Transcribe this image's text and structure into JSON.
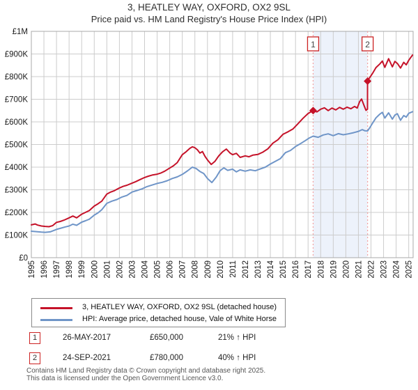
{
  "title": {
    "line1": "3, HEATLEY WAY, OXFORD, OX2 9SL",
    "line2": "Price paid vs. HM Land Registry's House Price Index (HPI)"
  },
  "chart_data": {
    "type": "line",
    "title": "3, HEATLEY WAY, OXFORD, OX2 9SL — Price paid vs. HPI",
    "values_unit": "GBP_thousands",
    "grid": true,
    "legend_position": "bottom",
    "grid_color": "#cccccc",
    "border_color": "#a8a8a8",
    "sale_line_color": "#f2a0a0",
    "band": {
      "from": 2017.4,
      "to": 2021.73,
      "color": "#edf2fb"
    },
    "x_axis": {
      "min": 1995,
      "max": 2025.35,
      "years": [
        1995,
        1996,
        1997,
        1998,
        1999,
        2000,
        2001,
        2002,
        2003,
        2004,
        2005,
        2006,
        2007,
        2008,
        2009,
        2010,
        2011,
        2012,
        2013,
        2014,
        2015,
        2016,
        2017,
        2018,
        2019,
        2020,
        2021,
        2022,
        2023,
        2024,
        2025
      ]
    },
    "y_axis": {
      "max_k": 1000,
      "ticks": [
        {
          "value_k": 0,
          "label": "£0"
        },
        {
          "value_k": 100,
          "label": "£100K"
        },
        {
          "value_k": 200,
          "label": "£200K"
        },
        {
          "value_k": 300,
          "label": "£300K"
        },
        {
          "value_k": 400,
          "label": "£400K"
        },
        {
          "value_k": 500,
          "label": "£500K"
        },
        {
          "value_k": 600,
          "label": "£600K"
        },
        {
          "value_k": 700,
          "label": "£700K"
        },
        {
          "value_k": 800,
          "label": "£800K"
        },
        {
          "value_k": 900,
          "label": "£900K"
        },
        {
          "value_k": 1000,
          "label": "£1M"
        }
      ]
    },
    "series": [
      {
        "name": "3, HEATLEY WAY, OXFORD, OX2 9SL (detached house)",
        "color": "#c51229",
        "points": [
          [
            1995.0,
            145
          ],
          [
            1995.3,
            149
          ],
          [
            1995.5,
            144
          ],
          [
            1995.8,
            140
          ],
          [
            1996.1,
            138
          ],
          [
            1996.4,
            137
          ],
          [
            1996.7,
            142
          ],
          [
            1997.0,
            156
          ],
          [
            1997.3,
            160
          ],
          [
            1997.6,
            166
          ],
          [
            1998.0,
            176
          ],
          [
            1998.3,
            184
          ],
          [
            1998.6,
            176
          ],
          [
            1999.0,
            192
          ],
          [
            1999.3,
            200
          ],
          [
            1999.6,
            208
          ],
          [
            2000.0,
            228
          ],
          [
            2000.3,
            238
          ],
          [
            2000.6,
            250
          ],
          [
            2001.0,
            281
          ],
          [
            2001.3,
            290
          ],
          [
            2001.6,
            296
          ],
          [
            2002.0,
            308
          ],
          [
            2002.3,
            315
          ],
          [
            2002.6,
            320
          ],
          [
            2003.0,
            329
          ],
          [
            2003.3,
            336
          ],
          [
            2003.6,
            344
          ],
          [
            2004.0,
            354
          ],
          [
            2004.3,
            360
          ],
          [
            2004.6,
            365
          ],
          [
            2005.0,
            369
          ],
          [
            2005.3,
            374
          ],
          [
            2005.6,
            382
          ],
          [
            2006.0,
            396
          ],
          [
            2006.3,
            406
          ],
          [
            2006.6,
            420
          ],
          [
            2007.0,
            455
          ],
          [
            2007.3,
            468
          ],
          [
            2007.6,
            483
          ],
          [
            2007.8,
            490
          ],
          [
            2008.0,
            486
          ],
          [
            2008.2,
            477
          ],
          [
            2008.4,
            462
          ],
          [
            2008.6,
            469
          ],
          [
            2008.8,
            448
          ],
          [
            2009.0,
            432
          ],
          [
            2009.3,
            412
          ],
          [
            2009.6,
            426
          ],
          [
            2009.9,
            450
          ],
          [
            2010.2,
            468
          ],
          [
            2010.5,
            480
          ],
          [
            2010.8,
            462
          ],
          [
            2011.0,
            455
          ],
          [
            2011.3,
            461
          ],
          [
            2011.6,
            443
          ],
          [
            2012.0,
            450
          ],
          [
            2012.3,
            446
          ],
          [
            2012.6,
            453
          ],
          [
            2013.0,
            456
          ],
          [
            2013.4,
            466
          ],
          [
            2013.8,
            481
          ],
          [
            2014.2,
            506
          ],
          [
            2014.6,
            521
          ],
          [
            2015.0,
            545
          ],
          [
            2015.4,
            556
          ],
          [
            2015.8,
            569
          ],
          [
            2016.2,
            592
          ],
          [
            2016.6,
            616
          ],
          [
            2017.0,
            637
          ],
          [
            2017.4,
            650
          ],
          [
            2017.7,
            644
          ],
          [
            2018.0,
            656
          ],
          [
            2018.3,
            662
          ],
          [
            2018.6,
            650
          ],
          [
            2018.9,
            661
          ],
          [
            2019.2,
            653
          ],
          [
            2019.5,
            664
          ],
          [
            2019.8,
            656
          ],
          [
            2020.1,
            665
          ],
          [
            2020.4,
            658
          ],
          [
            2020.7,
            668
          ],
          [
            2020.9,
            661
          ],
          [
            2021.1,
            690
          ],
          [
            2021.25,
            701
          ],
          [
            2021.45,
            672
          ],
          [
            2021.6,
            651
          ],
          [
            2021.72,
            656
          ],
          [
            2021.73,
            780
          ],
          [
            2021.9,
            796
          ],
          [
            2022.1,
            812
          ],
          [
            2022.4,
            840
          ],
          [
            2022.7,
            856
          ],
          [
            2022.9,
            869
          ],
          [
            2023.1,
            841
          ],
          [
            2023.4,
            879
          ],
          [
            2023.7,
            843
          ],
          [
            2023.9,
            867
          ],
          [
            2024.1,
            858
          ],
          [
            2024.35,
            838
          ],
          [
            2024.6,
            863
          ],
          [
            2024.8,
            852
          ],
          [
            2025.0,
            872
          ],
          [
            2025.3,
            895
          ]
        ]
      },
      {
        "name": "HPI: Average price, detached house, Vale of White Horse",
        "color": "#6f95c8",
        "points": [
          [
            1995.0,
            117
          ],
          [
            1995.4,
            115
          ],
          [
            1995.8,
            113
          ],
          [
            1996.1,
            112
          ],
          [
            1996.5,
            114
          ],
          [
            1997.0,
            125
          ],
          [
            1997.4,
            131
          ],
          [
            1997.7,
            136
          ],
          [
            1998.0,
            140
          ],
          [
            1998.3,
            148
          ],
          [
            1998.6,
            143
          ],
          [
            1999.0,
            157
          ],
          [
            1999.3,
            163
          ],
          [
            1999.6,
            170
          ],
          [
            2000.0,
            188
          ],
          [
            2000.3,
            198
          ],
          [
            2000.6,
            212
          ],
          [
            2001.0,
            240
          ],
          [
            2001.4,
            250
          ],
          [
            2001.8,
            257
          ],
          [
            2002.2,
            268
          ],
          [
            2002.6,
            275
          ],
          [
            2003.0,
            290
          ],
          [
            2003.4,
            297
          ],
          [
            2003.8,
            304
          ],
          [
            2004.2,
            314
          ],
          [
            2004.6,
            321
          ],
          [
            2005.0,
            328
          ],
          [
            2005.4,
            333
          ],
          [
            2005.8,
            340
          ],
          [
            2006.2,
            350
          ],
          [
            2006.6,
            357
          ],
          [
            2007.0,
            368
          ],
          [
            2007.4,
            383
          ],
          [
            2007.8,
            400
          ],
          [
            2008.1,
            394
          ],
          [
            2008.4,
            381
          ],
          [
            2008.7,
            372
          ],
          [
            2009.0,
            350
          ],
          [
            2009.35,
            332
          ],
          [
            2009.7,
            356
          ],
          [
            2010.0,
            384
          ],
          [
            2010.3,
            397
          ],
          [
            2010.6,
            386
          ],
          [
            2011.0,
            391
          ],
          [
            2011.3,
            379
          ],
          [
            2011.6,
            388
          ],
          [
            2012.0,
            382
          ],
          [
            2012.4,
            388
          ],
          [
            2012.8,
            384
          ],
          [
            2013.2,
            392
          ],
          [
            2013.6,
            400
          ],
          [
            2014.0,
            414
          ],
          [
            2014.4,
            426
          ],
          [
            2014.8,
            438
          ],
          [
            2015.2,
            464
          ],
          [
            2015.6,
            474
          ],
          [
            2016.0,
            491
          ],
          [
            2016.4,
            504
          ],
          [
            2016.8,
            518
          ],
          [
            2017.1,
            529
          ],
          [
            2017.4,
            537
          ],
          [
            2017.8,
            532
          ],
          [
            2018.2,
            542
          ],
          [
            2018.6,
            547
          ],
          [
            2019.0,
            539
          ],
          [
            2019.4,
            548
          ],
          [
            2019.8,
            543
          ],
          [
            2020.2,
            547
          ],
          [
            2020.6,
            552
          ],
          [
            2021.0,
            558
          ],
          [
            2021.3,
            566
          ],
          [
            2021.5,
            561
          ],
          [
            2021.73,
            560
          ],
          [
            2021.9,
            574
          ],
          [
            2022.1,
            592
          ],
          [
            2022.4,
            618
          ],
          [
            2022.7,
            634
          ],
          [
            2022.9,
            642
          ],
          [
            2023.1,
            617
          ],
          [
            2023.4,
            640
          ],
          [
            2023.7,
            612
          ],
          [
            2023.9,
            630
          ],
          [
            2024.1,
            636
          ],
          [
            2024.35,
            607
          ],
          [
            2024.6,
            628
          ],
          [
            2024.8,
            621
          ],
          [
            2025.0,
            638
          ],
          [
            2025.3,
            645
          ]
        ]
      }
    ],
    "sales": [
      {
        "label": "1",
        "year": 2017.4,
        "price_k": 650
      },
      {
        "label": "2",
        "year": 2021.73,
        "price_k": 780
      }
    ]
  },
  "legend": {
    "items": [
      {
        "label": "3, HEATLEY WAY, OXFORD, OX2 9SL (detached house)",
        "color": "#c51229"
      },
      {
        "label": "HPI: Average price, detached house, Vale of White Horse",
        "color": "#6f95c8"
      }
    ]
  },
  "annotations": [
    {
      "num": "1",
      "date": "26-MAY-2017",
      "price": "£650,000",
      "hpi": "21% ↑ HPI"
    },
    {
      "num": "2",
      "date": "24-SEP-2021",
      "price": "£780,000",
      "hpi": "40% ↑ HPI"
    }
  ],
  "footer": {
    "line1": "Contains HM Land Registry data © Crown copyright and database right 2025.",
    "line2": "This data is licensed under the Open Government Licence v3.0."
  }
}
